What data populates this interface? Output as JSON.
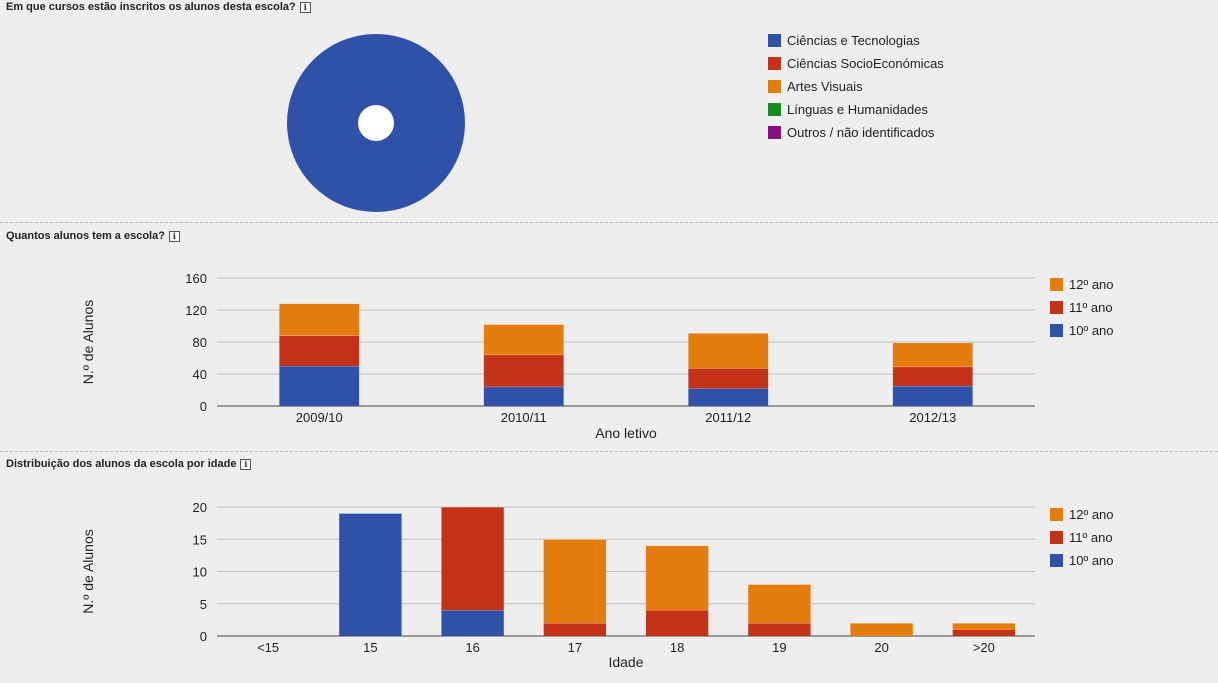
{
  "colors": {
    "blue": "#3051a8",
    "red": "#c43318",
    "orange": "#e57c0e",
    "green": "#168d1f",
    "purple": "#860f86"
  },
  "sections": {
    "courses_title": "Em que cursos estão inscritos os alunos desta escola?",
    "students_title": "Quantos alunos tem a escola?",
    "age_title": "Distribuição dos alunos da escola por idade",
    "info_glyph": "i"
  },
  "chart_data": [
    {
      "type": "pie",
      "title": "Em que cursos estão inscritos os alunos desta escola?",
      "style": "donut",
      "legend_position": "right",
      "categories": [
        "Ciências e Tecnologias",
        "Ciências SocioEconómicas",
        "Artes Visuais",
        "Línguas e Humanidades",
        "Outros / não identificados"
      ],
      "values": [
        100,
        0,
        0,
        0,
        0
      ],
      "colors": [
        "#3051a8",
        "#c43318",
        "#e57c0e",
        "#168d1f",
        "#860f86"
      ]
    },
    {
      "type": "bar",
      "stacked": true,
      "title": "Quantos alunos tem a escola?",
      "xlabel": "Ano letivo",
      "ylabel": "N.º de Alunos",
      "ylim": [
        0,
        160
      ],
      "yticks": [
        0,
        40,
        80,
        120,
        160
      ],
      "categories": [
        "2009/10",
        "2010/11",
        "2011/12",
        "2012/13"
      ],
      "legend_position": "right",
      "series": [
        {
          "name": "10º ano",
          "color": "#3051a8",
          "values": [
            50,
            24,
            22,
            25
          ]
        },
        {
          "name": "11º ano",
          "color": "#c43318",
          "values": [
            38,
            40,
            25,
            24
          ]
        },
        {
          "name": "12º ano",
          "color": "#e57c0e",
          "values": [
            40,
            38,
            44,
            30
          ]
        }
      ]
    },
    {
      "type": "bar",
      "stacked": true,
      "title": "Distribuição dos alunos da escola por idade",
      "xlabel": "Idade",
      "ylabel": "N.º de Alunos",
      "ylim": [
        0,
        20
      ],
      "yticks": [
        0,
        5,
        10,
        15,
        20
      ],
      "categories": [
        "<15",
        "15",
        "16",
        "17",
        "18",
        "19",
        "20",
        ">20"
      ],
      "legend_position": "right",
      "series": [
        {
          "name": "10º ano",
          "color": "#3051a8",
          "values": [
            0,
            19,
            4,
            0,
            0,
            0,
            0,
            0
          ]
        },
        {
          "name": "11º ano",
          "color": "#c43318",
          "values": [
            0,
            0,
            16,
            2,
            4,
            2,
            0,
            1
          ]
        },
        {
          "name": "12º ano",
          "color": "#e57c0e",
          "values": [
            0,
            0,
            0,
            13,
            10,
            6,
            2,
            1
          ]
        }
      ]
    }
  ]
}
